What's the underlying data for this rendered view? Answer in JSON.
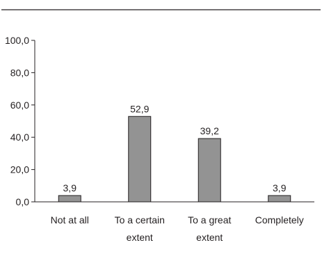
{
  "chart_data": {
    "type": "bar",
    "categories": [
      [
        "Not at all"
      ],
      [
        "To a certain",
        "extent"
      ],
      [
        "To a great",
        "extent"
      ],
      [
        "Completely"
      ]
    ],
    "values": [
      3.9,
      52.9,
      39.2,
      3.9
    ],
    "value_labels": [
      "3,9",
      "52,9",
      "39,2",
      "3,9"
    ],
    "ylim": [
      0,
      100
    ],
    "yticks": [
      0,
      20,
      40,
      60,
      80,
      100
    ],
    "ytick_labels": [
      "0,0",
      "20,0",
      "40,0",
      "60,0",
      "80,0",
      "100,0"
    ],
    "grid": false,
    "bar_color": "#939393",
    "bar_edge_color": "#231f20",
    "axis_color": "#231f20"
  }
}
